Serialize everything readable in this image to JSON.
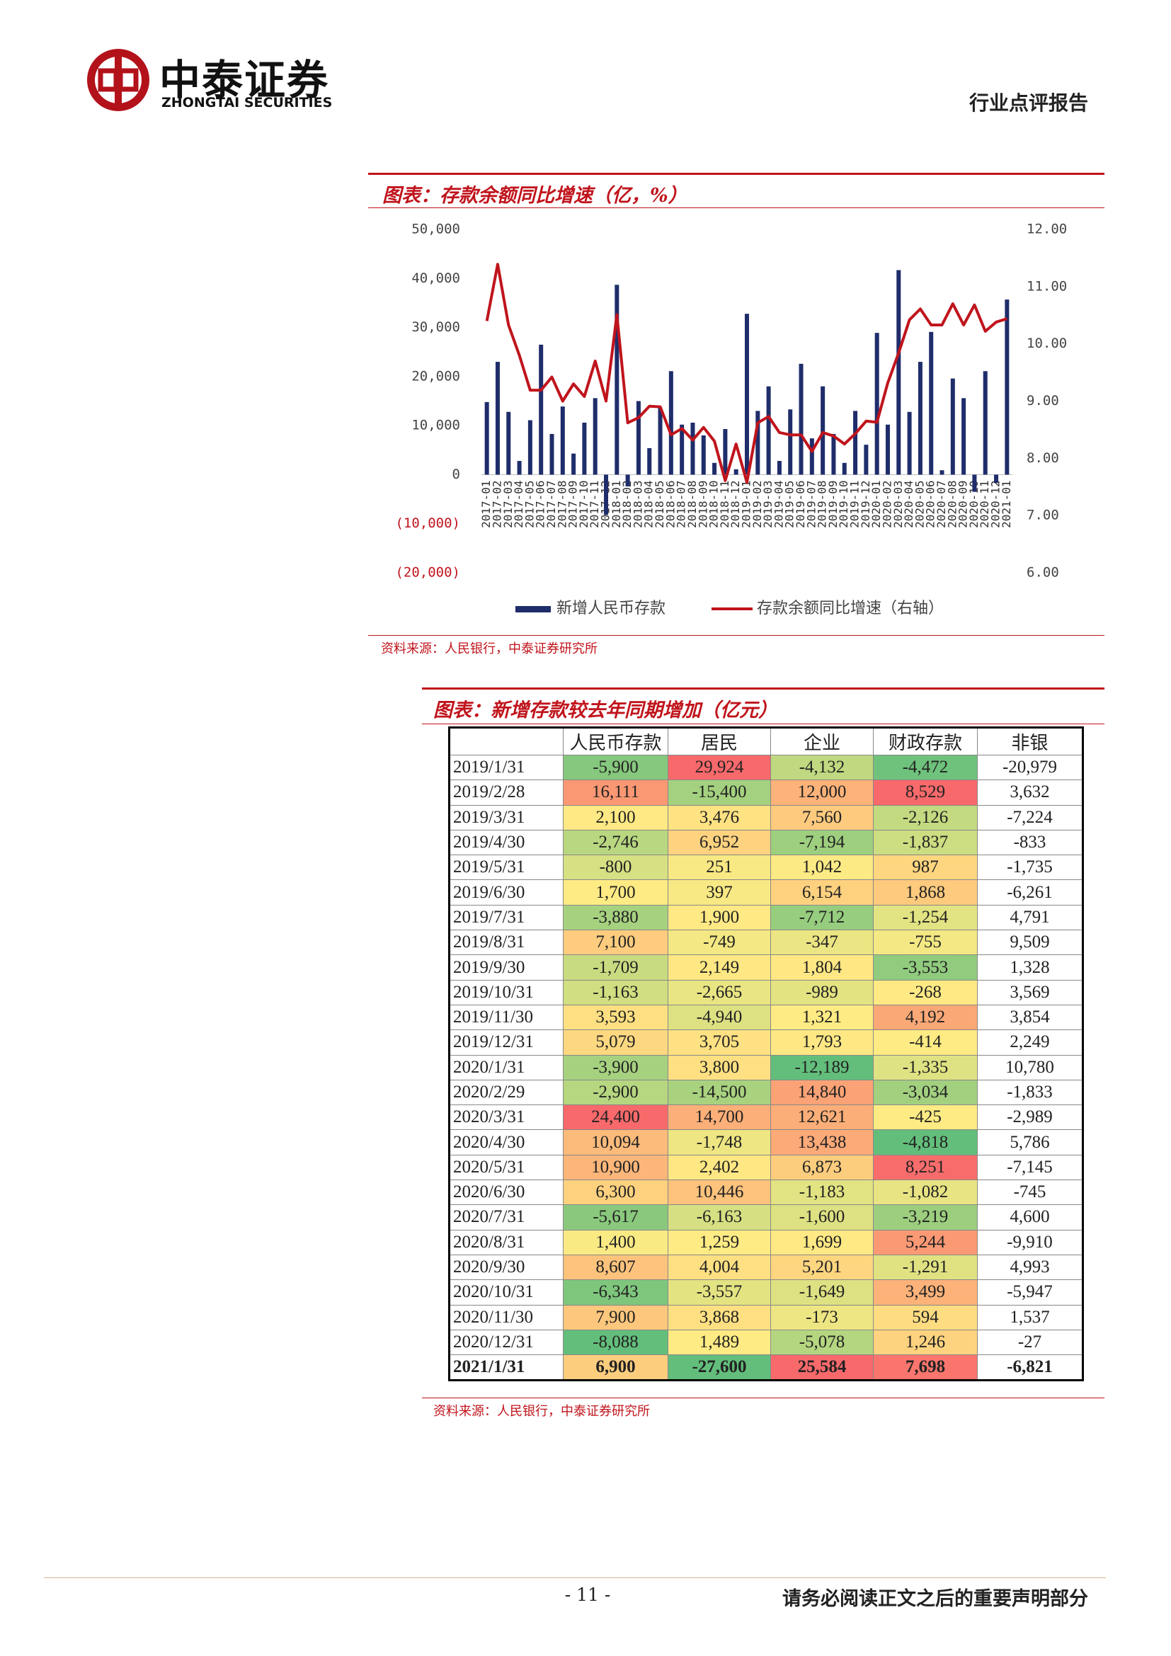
{
  "header": {
    "company": "中泰证券",
    "company_en": "ZHONGTAI SECURITIES",
    "report_type": "行业点评报告"
  },
  "chart_data": {
    "type": "bar_line",
    "title": "图表：存款余额同比增速（亿，%）",
    "categories": [
      "2017-01",
      "2017-02",
      "2017-03",
      "2017-04",
      "2017-05",
      "2017-06",
      "2017-07",
      "2017-08",
      "2017-09",
      "2017-10",
      "2017-11",
      "2017-12",
      "2018-01",
      "2018-02",
      "2018-03",
      "2018-04",
      "2018-05",
      "2018-06",
      "2018-07",
      "2018-08",
      "2018-09",
      "2018-10",
      "2018-11",
      "2018-12",
      "2019-01",
      "2019-02",
      "2019-03",
      "2019-04",
      "2019-05",
      "2019-06",
      "2019-07",
      "2019-08",
      "2019-09",
      "2019-10",
      "2019-11",
      "2019-12",
      "2020-01",
      "2020-02",
      "2020-03",
      "2020-04",
      "2020-05",
      "2020-06",
      "2020-07",
      "2020-08",
      "2020-09",
      "2020-10",
      "2020-11",
      "2020-12",
      "2021-01"
    ],
    "series": [
      {
        "name": "新增人民币存款",
        "type": "bar",
        "color": "#1f2d6b",
        "values": [
          14800,
          23000,
          12800,
          2800,
          11100,
          26500,
          8300,
          13900,
          4300,
          10600,
          15600,
          -8200,
          38700,
          -2400,
          15000,
          5400,
          13700,
          21100,
          10200,
          10600,
          8000,
          2400,
          9300,
          1100,
          32800,
          13000,
          18000,
          2800,
          13300,
          22600,
          7400,
          18000,
          8300,
          2400,
          13000,
          6100,
          28900,
          10200,
          41700,
          12800,
          23000,
          29100,
          900,
          19600,
          15600,
          -3500,
          21100,
          -1700,
          35700
        ]
      },
      {
        "name": "存款余额同比增速（右轴）",
        "type": "line",
        "axis": "y2",
        "color": "#c0141c",
        "values": [
          10.4,
          11.39,
          10.33,
          9.8,
          9.19,
          9.19,
          9.42,
          9.0,
          9.3,
          9.08,
          9.7,
          9.0,
          10.51,
          8.62,
          8.71,
          8.91,
          8.9,
          8.41,
          8.52,
          8.32,
          8.54,
          8.3,
          7.61,
          8.25,
          7.58,
          8.62,
          8.73,
          8.45,
          8.41,
          8.41,
          8.12,
          8.45,
          8.39,
          8.25,
          8.43,
          8.65,
          8.63,
          9.32,
          9.84,
          10.42,
          10.61,
          10.33,
          10.33,
          10.7,
          10.33,
          10.68,
          10.22,
          10.38,
          10.44
        ]
      }
    ],
    "ylim": [
      -20000,
      50000
    ],
    "yticks": [
      {
        "value": 50000,
        "label": "50,000"
      },
      {
        "value": 40000,
        "label": "40,000"
      },
      {
        "value": 30000,
        "label": "30,000"
      },
      {
        "value": 20000,
        "label": "20,000"
      },
      {
        "value": 10000,
        "label": "10,000"
      },
      0,
      {
        "value": -10000,
        "label": "(10,000)"
      },
      {
        "value": -20000,
        "label": "(20,000)"
      }
    ],
    "y2lim": [
      6,
      12
    ],
    "y2ticks": [
      {
        "value": 12,
        "label": "12.00"
      },
      {
        "value": 11,
        "label": "11.00"
      },
      {
        "value": 10,
        "label": "10.00"
      },
      {
        "value": 9,
        "label": "9.00"
      },
      {
        "value": 8,
        "label": "8.00"
      },
      {
        "value": 7,
        "label": "7.00"
      },
      {
        "value": 6,
        "label": "6.00"
      }
    ],
    "source": "资料来源：人民银行，中泰证券研究所"
  },
  "table": {
    "title": "图表：新增存款较去年同期增加（亿元）",
    "columns": [
      "人民币存款",
      "居民",
      "企业",
      "财政存款",
      "非银"
    ],
    "heatmap": {
      "low": "#63be7b",
      "mid": "#ffeb84",
      "high": "#f8696b",
      "columns": [
        0,
        1,
        2,
        3
      ]
    },
    "rows": [
      {
        "date": "2019/1/31",
        "cells": [
          "-5,900",
          "29,924",
          "-4,132",
          "-4,472",
          "-20,979"
        ]
      },
      {
        "date": "2019/2/28",
        "cells": [
          "16,111",
          "-15,400",
          "12,000",
          "8,529",
          "3,632"
        ]
      },
      {
        "date": "2019/3/31",
        "cells": [
          "2,100",
          "3,476",
          "7,560",
          "-2,126",
          "-7,224"
        ]
      },
      {
        "date": "2019/4/30",
        "cells": [
          "-2,746",
          "6,952",
          "-7,194",
          "-1,837",
          "-833"
        ]
      },
      {
        "date": "2019/5/31",
        "cells": [
          "-800",
          "251",
          "1,042",
          "987",
          "-1,735"
        ]
      },
      {
        "date": "2019/6/30",
        "cells": [
          "1,700",
          "397",
          "6,154",
          "1,868",
          "-6,261"
        ]
      },
      {
        "date": "2019/7/31",
        "cells": [
          "-3,880",
          "1,900",
          "-7,712",
          "-1,254",
          "4,791"
        ]
      },
      {
        "date": "2019/8/31",
        "cells": [
          "7,100",
          "-749",
          "-347",
          "-755",
          "9,509"
        ]
      },
      {
        "date": "2019/9/30",
        "cells": [
          "-1,709",
          "2,149",
          "1,804",
          "-3,553",
          "1,328"
        ]
      },
      {
        "date": "2019/10/31",
        "cells": [
          "-1,163",
          "-2,665",
          "-989",
          "-268",
          "3,569"
        ]
      },
      {
        "date": "2019/11/30",
        "cells": [
          "3,593",
          "-4,940",
          "1,321",
          "4,192",
          "3,854"
        ]
      },
      {
        "date": "2019/12/31",
        "cells": [
          "5,079",
          "3,705",
          "1,793",
          "-414",
          "2,249"
        ]
      },
      {
        "date": "2020/1/31",
        "cells": [
          "-3,900",
          "3,800",
          "-12,189",
          "-1,335",
          "10,780"
        ]
      },
      {
        "date": "2020/2/29",
        "cells": [
          "-2,900",
          "-14,500",
          "14,840",
          "-3,034",
          "-1,833"
        ]
      },
      {
        "date": "2020/3/31",
        "cells": [
          "24,400",
          "14,700",
          "12,621",
          "-425",
          "-2,989"
        ]
      },
      {
        "date": "2020/4/30",
        "cells": [
          "10,094",
          "-1,748",
          "13,438",
          "-4,818",
          "5,786"
        ]
      },
      {
        "date": "2020/5/31",
        "cells": [
          "10,900",
          "2,402",
          "6,873",
          "8,251",
          "-7,145"
        ]
      },
      {
        "date": "2020/6/30",
        "cells": [
          "6,300",
          "10,446",
          "-1,183",
          "-1,082",
          "-745"
        ]
      },
      {
        "date": "2020/7/31",
        "cells": [
          "-5,617",
          "-6,163",
          "-1,600",
          "-3,219",
          "4,600"
        ]
      },
      {
        "date": "2020/8/31",
        "cells": [
          "1,400",
          "1,259",
          "1,699",
          "5,244",
          "-9,910"
        ]
      },
      {
        "date": "2020/9/30",
        "cells": [
          "8,607",
          "4,004",
          "5,201",
          "-1,291",
          "4,993"
        ]
      },
      {
        "date": "2020/10/31",
        "cells": [
          "-6,343",
          "-3,557",
          "-1,649",
          "3,499",
          "-5,947"
        ]
      },
      {
        "date": "2020/11/30",
        "cells": [
          "7,900",
          "3,868",
          "-173",
          "594",
          "1,537"
        ]
      },
      {
        "date": "2020/12/31",
        "cells": [
          "-8,088",
          "1,489",
          "-5,078",
          "1,246",
          "-27"
        ]
      },
      {
        "date": "2021/1/31",
        "cells": [
          "6,900",
          "-27,600",
          "25,584",
          "7,698",
          "-6,821"
        ]
      }
    ],
    "source": "资料来源：人民银行，中泰证券研究所"
  },
  "footer": {
    "page": "- 11 -",
    "disclaimer": "请务必阅读正文之后的重要声明部分"
  }
}
